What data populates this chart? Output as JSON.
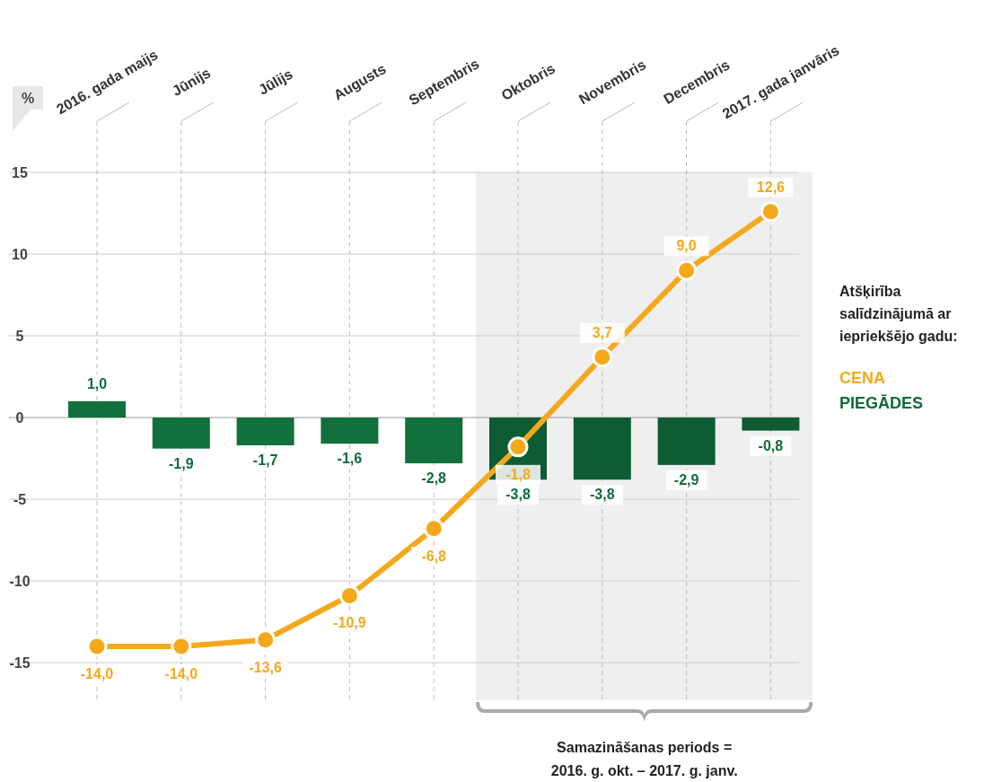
{
  "chart_data": {
    "type": "bar",
    "categories": [
      "2016. gada maijs",
      "Jūnijs",
      "Jūlijs",
      "Augusts",
      "Septembris",
      "Oktobris",
      "Novembris",
      "Decembris",
      "2017. gada janvāris"
    ],
    "ylabel": "%",
    "legend_title": "Atšķirība salīdzinājumā ar iepriekšējo gadu:",
    "legend": "right",
    "grid": true,
    "ylim": [
      -17.3,
      15
    ],
    "yticks": [
      -15,
      -10,
      -5,
      0,
      5,
      10,
      15
    ],
    "series": [
      {
        "name": "PIEGĀDES",
        "color": "#0f6b3a",
        "colors": [
          "#11703c",
          "#11703c",
          "#11703c",
          "#11703c",
          "#11703c",
          "#0d5c33",
          "#0d5c33",
          "#0d5c33",
          "#0d5c33"
        ],
        "values": [
          1.0,
          -1.9,
          -1.7,
          -1.6,
          -2.8,
          -3.8,
          -3.8,
          -2.9,
          -0.8
        ],
        "value_labels": [
          "1,0",
          "-1,9",
          "-1,7",
          "-1,6",
          "-2,8",
          "-3,8",
          "-3,8",
          "-2,9",
          "-0,8"
        ]
      },
      {
        "name": "CENA",
        "type": "line",
        "color": "#f5a81c",
        "marker": "circle",
        "values": [
          -14.0,
          -14.0,
          -13.6,
          -10.9,
          -6.8,
          -1.8,
          3.7,
          9.0,
          12.6
        ],
        "value_labels": [
          "-14,0",
          "-14,0",
          "-13,6",
          "-10,9",
          "-6,8",
          "-1,8",
          "3,7",
          "9,0",
          "12,6"
        ]
      }
    ],
    "bands": [
      {
        "axis": "x",
        "from": "Oktobris",
        "to": "2017. gada janvāris",
        "label": "Samazināšanas periods = 2016. g. okt. – 2017. g. janv.",
        "color": "#efefef"
      }
    ]
  }
}
